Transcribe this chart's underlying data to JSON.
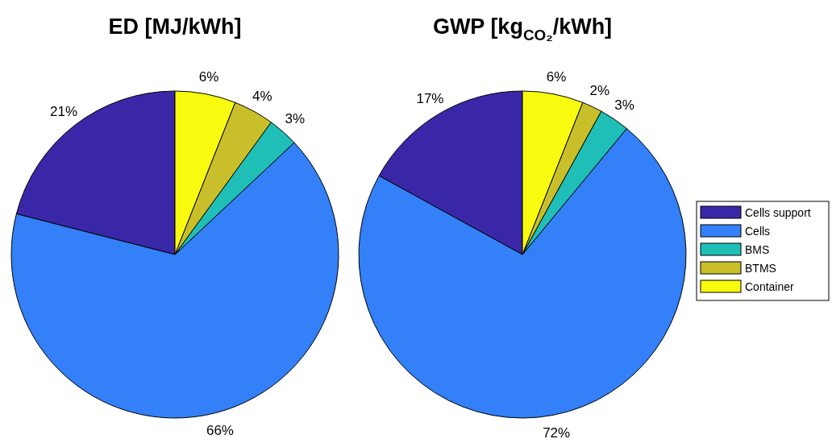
{
  "chart_data": [
    {
      "type": "pie",
      "title": "ED [MJ/kWh]",
      "categories": [
        null,
        null,
        null,
        null,
        null
      ],
      "values": [
        21,
        66,
        3,
        4,
        6
      ],
      "value_labels": [
        "21%",
        "66%",
        "3%",
        "4%",
        "6%"
      ],
      "colors": [
        "#3a27a8",
        "#3380f8",
        "#1fbfb8",
        "#c9bf2b",
        "#f8fa0f"
      ]
    },
    {
      "type": "pie",
      "title": "GWP [kg$_{CO₂}$/kWh]",
      "categories": [
        "Cells support",
        "Cells",
        "BMS",
        "BTMS",
        "Container"
      ],
      "values": [
        17,
        72,
        3,
        2,
        6
      ],
      "value_labels": [
        "17%",
        "72%",
        "3%",
        "2%",
        "6%"
      ],
      "colors": [
        "#3a27a8",
        "#3380f8",
        "#1fbfb8",
        "#c9bf2b",
        "#f8fa0f"
      ],
      "legend": "right"
    }
  ]
}
